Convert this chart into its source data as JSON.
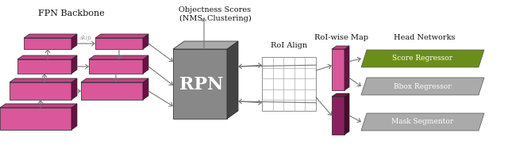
{
  "background_color": "#ffffff",
  "title_fpn": "FPN Backbone",
  "title_rpn": "Objectness Scores\n(NMS, Clustering)",
  "title_roi": "RoI Align",
  "title_roiwise": "RoI-wise Map",
  "title_head": "Head Networks",
  "rpn_label": "RPN",
  "head_labels": [
    "Score Regressor",
    "Bbox Regressor",
    "Mask Segmentor"
  ],
  "head_colors": [
    "#6b8e1a",
    "#aaaaaa",
    "#aaaaaa"
  ],
  "head_text_color": "#ffffff",
  "pink_face": "#d9579a",
  "pink_dark": "#8b2060",
  "pink_side": "#6a1045",
  "pink_top": "#c04585",
  "rpn_color": "#888888",
  "rpn_dark": "#444444",
  "rpn_top": "#aaaaaa",
  "arrow_color": "#777777",
  "text_color": "#111111"
}
